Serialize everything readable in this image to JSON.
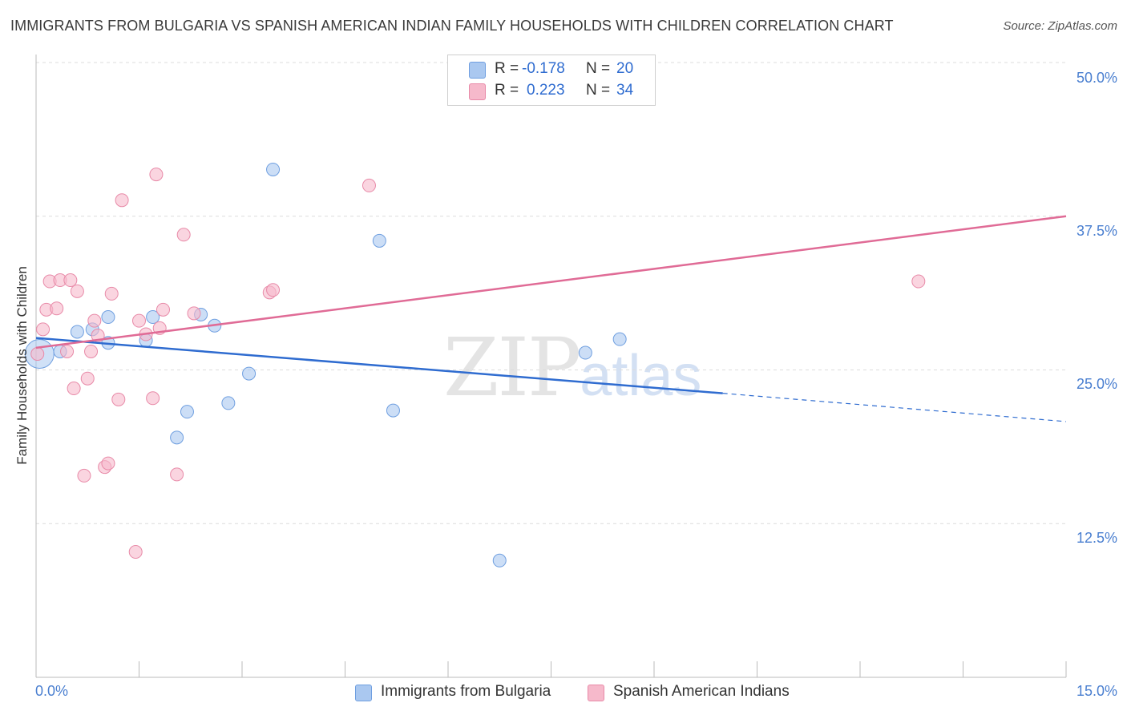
{
  "title": "IMMIGRANTS FROM BULGARIA VS SPANISH AMERICAN INDIAN FAMILY HOUSEHOLDS WITH CHILDREN CORRELATION CHART",
  "source": "Source: ZipAtlas.com",
  "watermark": {
    "zip": "ZIP",
    "atlas": "atlas"
  },
  "legend": {
    "rows": [
      {
        "r_label": "R =",
        "r_value": "-0.178",
        "n_label": "N =",
        "n_value": "20",
        "color": "#aac8f0"
      },
      {
        "r_label": "R =",
        "r_value": "0.223",
        "n_label": "N =",
        "n_value": "34",
        "color": "#f6b9cb"
      }
    ]
  },
  "bottom_legend": [
    {
      "label": "Immigrants from Bulgaria",
      "color": "#aac8f0"
    },
    {
      "label": "Spanish American Indians",
      "color": "#f6b9cb"
    }
  ],
  "chart_data": {
    "type": "scatter",
    "title": "IMMIGRANTS FROM BULGARIA VS SPANISH AMERICAN INDIAN FAMILY HOUSEHOLDS WITH CHILDREN CORRELATION CHART",
    "xlabel": "",
    "ylabel": "Family Households with Children",
    "xlim": [
      0,
      15
    ],
    "ylim": [
      0,
      50
    ],
    "x_tick_labels": [
      "0.0%",
      "15.0%"
    ],
    "y_ticks": [
      12.5,
      25.0,
      37.5,
      50.0
    ],
    "y_tick_labels": [
      "12.5%",
      "25.0%",
      "37.5%",
      "50.0%"
    ],
    "grid": true,
    "legend_placement": "top-center",
    "series": [
      {
        "name": "Immigrants from Bulgaria",
        "color": "#aac8f0",
        "stroke": "#6f9fe0",
        "line_color": "#2f6cd0",
        "r": -0.178,
        "n": 20,
        "trend": {
          "x0": 0,
          "y0": 27.6,
          "x_solid_end": 10.0,
          "y_solid_end": 23.1,
          "x1": 15.0,
          "y1": 20.8
        },
        "points": [
          [
            0.05,
            26.3
          ],
          [
            0.35,
            26.5
          ],
          [
            0.6,
            28.1
          ],
          [
            0.82,
            28.3
          ],
          [
            1.05,
            27.2
          ],
          [
            1.05,
            29.3
          ],
          [
            1.6,
            27.4
          ],
          [
            1.7,
            29.3
          ],
          [
            2.2,
            21.6
          ],
          [
            2.05,
            19.5
          ],
          [
            2.4,
            29.5
          ],
          [
            2.6,
            28.6
          ],
          [
            2.8,
            22.3
          ],
          [
            3.1,
            24.7
          ],
          [
            3.45,
            41.3
          ],
          [
            5.0,
            35.5
          ],
          [
            5.2,
            21.7
          ],
          [
            6.75,
            9.5
          ],
          [
            8.0,
            26.4
          ],
          [
            8.5,
            27.5
          ]
        ]
      },
      {
        "name": "Spanish American Indians",
        "color": "#f6b9cb",
        "stroke": "#e88aa8",
        "line_color": "#e06b96",
        "r": 0.223,
        "n": 34,
        "trend": {
          "x0": 0,
          "y0": 26.8,
          "x1": 15.0,
          "y1": 37.5
        },
        "points": [
          [
            0.1,
            28.3
          ],
          [
            0.15,
            29.9
          ],
          [
            0.2,
            32.2
          ],
          [
            0.3,
            30.0
          ],
          [
            0.35,
            32.3
          ],
          [
            0.45,
            26.5
          ],
          [
            0.5,
            32.3
          ],
          [
            0.55,
            23.5
          ],
          [
            0.6,
            31.4
          ],
          [
            0.7,
            16.4
          ],
          [
            0.75,
            24.3
          ],
          [
            0.8,
            26.5
          ],
          [
            0.85,
            29.0
          ],
          [
            0.9,
            27.8
          ],
          [
            1.0,
            17.1
          ],
          [
            1.05,
            17.4
          ],
          [
            1.1,
            31.2
          ],
          [
            1.2,
            22.6
          ],
          [
            1.25,
            38.8
          ],
          [
            1.45,
            10.2
          ],
          [
            1.5,
            29.0
          ],
          [
            1.6,
            27.9
          ],
          [
            1.7,
            22.7
          ],
          [
            1.75,
            40.9
          ],
          [
            1.8,
            28.4
          ],
          [
            1.85,
            29.9
          ],
          [
            2.05,
            16.5
          ],
          [
            2.15,
            36.0
          ],
          [
            2.3,
            29.6
          ],
          [
            3.4,
            31.3
          ],
          [
            3.45,
            31.5
          ],
          [
            4.85,
            40.0
          ],
          [
            12.85,
            32.2
          ],
          [
            0.02,
            26.3
          ]
        ]
      }
    ]
  }
}
